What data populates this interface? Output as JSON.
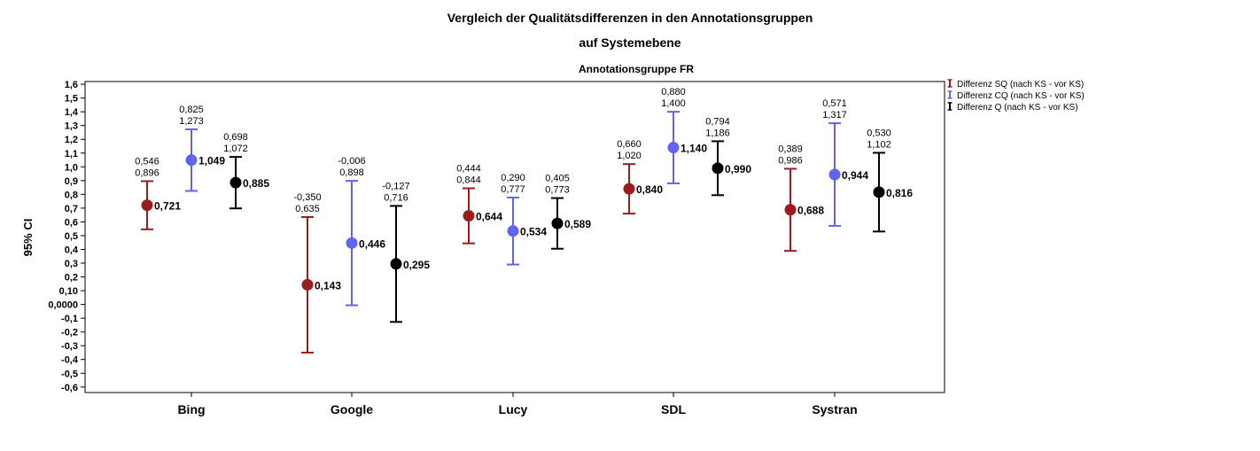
{
  "chart_data": {
    "type": "errorbar",
    "title": "Vergleich der Qualitätsdifferenzen in den Annotationsgruppen",
    "title_line2": "auf Systemebene",
    "subtitle": "Annotationsgruppe FR",
    "ylabel": "95% CI",
    "ylim": [
      -0.6,
      1.6
    ],
    "yticks": [
      {
        "v": 1.6,
        "label": "1,6"
      },
      {
        "v": 1.5,
        "label": "1,5"
      },
      {
        "v": 1.4,
        "label": "1,4"
      },
      {
        "v": 1.3,
        "label": "1,3"
      },
      {
        "v": 1.2,
        "label": "1,2"
      },
      {
        "v": 1.1,
        "label": "1,1"
      },
      {
        "v": 1.0,
        "label": "1,0"
      },
      {
        "v": 0.9,
        "label": "0,9"
      },
      {
        "v": 0.8,
        "label": "0,8"
      },
      {
        "v": 0.7,
        "label": "0,7"
      },
      {
        "v": 0.6,
        "label": "0,6"
      },
      {
        "v": 0.5,
        "label": "0,5"
      },
      {
        "v": 0.4,
        "label": "0,4"
      },
      {
        "v": 0.3,
        "label": "0,3"
      },
      {
        "v": 0.2,
        "label": "0,2"
      },
      {
        "v": 0.1,
        "label": "0,10"
      },
      {
        "v": 0.0,
        "label": "0,0000"
      },
      {
        "v": -0.1,
        "label": "-0,1"
      },
      {
        "v": -0.2,
        "label": "-0,2"
      },
      {
        "v": -0.3,
        "label": "-0,3"
      },
      {
        "v": -0.4,
        "label": "-0,4"
      },
      {
        "v": -0.5,
        "label": "-0,5"
      },
      {
        "v": -0.6,
        "label": "-0,6"
      }
    ],
    "categories": [
      "Bing",
      "Google",
      "Lucy",
      "SDL",
      "Systran"
    ],
    "legend_position": "top-right",
    "series": [
      {
        "name": "Differenz SQ (nach KS - vor KS)",
        "color": "#9b1c1c",
        "means": [
          0.721,
          0.143,
          0.644,
          0.84,
          0.688
        ],
        "lower": [
          0.546,
          -0.35,
          0.444,
          0.66,
          0.389
        ],
        "upper": [
          0.896,
          0.635,
          0.844,
          1.02,
          0.986
        ],
        "mean_labels": [
          "0,721",
          "0,143",
          "0,644",
          "0,840",
          "0,688"
        ],
        "lower_labels": [
          "0,546",
          "-0,350",
          "0,444",
          "0,660",
          "0,389"
        ],
        "upper_labels": [
          "0,896",
          "0,635",
          "0,844",
          "1,020",
          "0,986"
        ]
      },
      {
        "name": "Differenz CQ (nach KS - vor KS)",
        "color": "#6262f5",
        "means": [
          1.049,
          0.446,
          0.534,
          1.14,
          0.944
        ],
        "lower": [
          0.825,
          -0.006,
          0.29,
          0.88,
          0.571
        ],
        "upper": [
          1.273,
          0.898,
          0.777,
          1.4,
          1.317
        ],
        "mean_labels": [
          "1,049",
          "0,446",
          "0,534",
          "1,140",
          "0,944"
        ],
        "lower_labels": [
          "0,825",
          "-0,006",
          "0,290",
          "0,880",
          "0,571"
        ],
        "upper_labels": [
          "1,273",
          "0,898",
          "0,777",
          "1,400",
          "1,317"
        ]
      },
      {
        "name": "Differenz Q (nach KS - vor KS)",
        "color": "#000000",
        "means": [
          0.885,
          0.295,
          0.589,
          0.99,
          0.816
        ],
        "lower": [
          0.698,
          -0.127,
          0.405,
          0.794,
          0.53
        ],
        "upper": [
          1.072,
          0.716,
          0.773,
          1.186,
          1.102
        ],
        "mean_labels": [
          "0,885",
          "0,295",
          "0,589",
          "0,990",
          "0,816"
        ],
        "lower_labels": [
          "0,698",
          "-0,127",
          "0,405",
          "0,794",
          "0,530"
        ],
        "upper_labels": [
          "1,072",
          "0,716",
          "0,773",
          "1,186",
          "1,102"
        ]
      }
    ]
  }
}
